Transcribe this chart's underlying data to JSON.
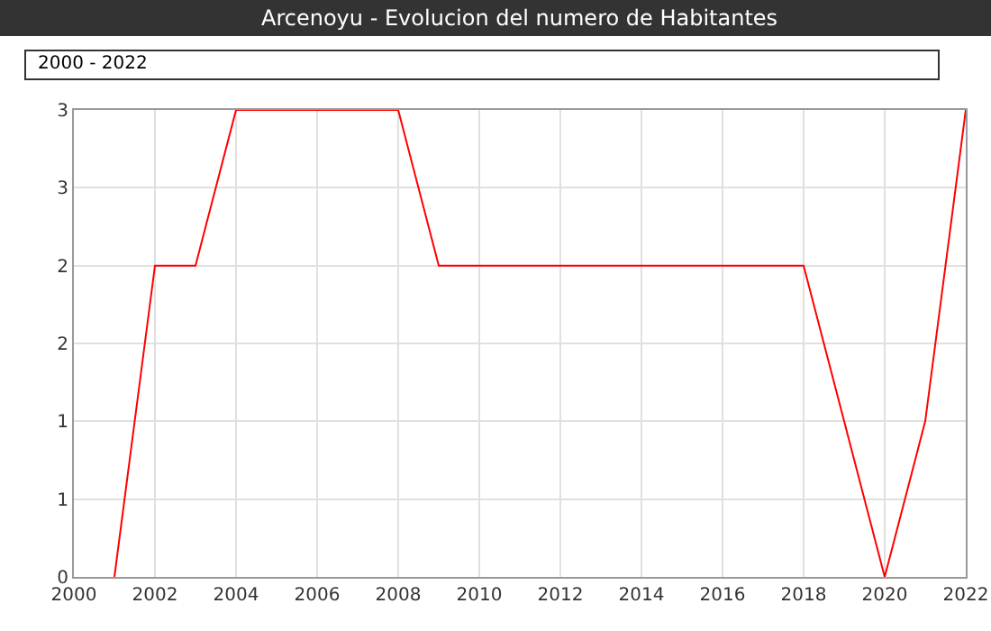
{
  "chart_data": {
    "type": "line",
    "title": "Arcenoyu - Evolucion del numero de Habitantes",
    "subtitle": "2000 - 2022",
    "x": [
      2001,
      2002,
      2003,
      2004,
      2005,
      2006,
      2007,
      2008,
      2009,
      2010,
      2011,
      2012,
      2013,
      2014,
      2015,
      2016,
      2017,
      2018,
      2019,
      2020,
      2021,
      2022
    ],
    "series": [
      {
        "color": "#ff0000",
        "values": [
          0,
          2,
          2,
          3,
          3,
          3,
          3,
          3,
          2,
          2,
          2,
          2,
          2,
          2,
          2,
          2,
          2,
          2,
          1,
          0,
          1,
          3
        ]
      }
    ],
    "xlim": [
      2000,
      2022
    ],
    "xticks": [
      2000,
      2002,
      2004,
      2006,
      2008,
      2010,
      2012,
      2014,
      2016,
      2018,
      2020,
      2022
    ],
    "ylim": [
      0,
      3
    ],
    "yticks": [
      0,
      {
        "value": 0.5,
        "label": "1"
      },
      1,
      {
        "value": 1.5,
        "label": "2"
      },
      2,
      {
        "value": 2.5,
        "label": "3"
      },
      3
    ],
    "grid": true,
    "marker": "none",
    "line_style": "solid"
  }
}
